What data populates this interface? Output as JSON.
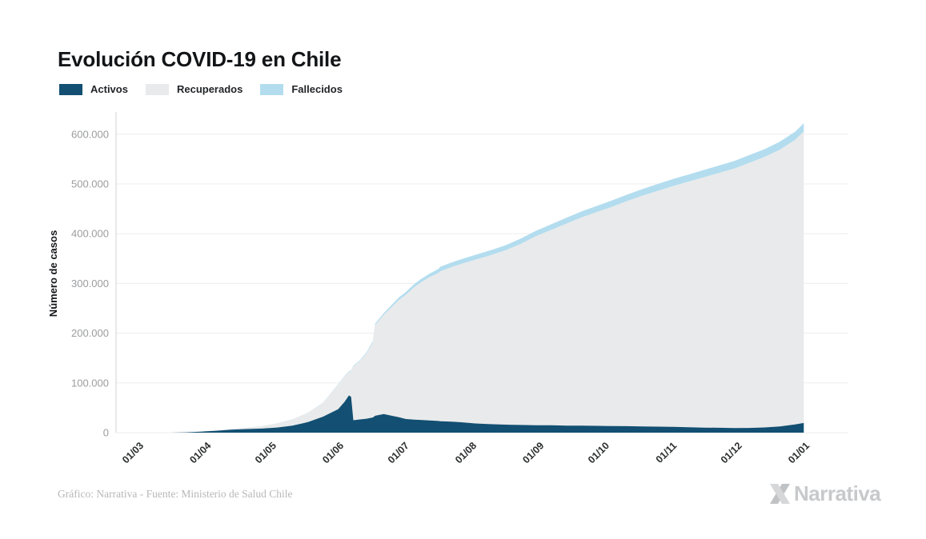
{
  "title": "Evolución COVID-19 en Chile",
  "legend": {
    "items": [
      {
        "label": "Activos",
        "color": "#124f72"
      },
      {
        "label": "Recuperados",
        "color": "#e9eaeb"
      },
      {
        "label": "Fallecidos",
        "color": "#b3ddef"
      }
    ]
  },
  "y_axis": {
    "title": "Número de casos",
    "ticks": [
      {
        "value": 0,
        "label": "0"
      },
      {
        "value": 100000,
        "label": "100.000"
      },
      {
        "value": 200000,
        "label": "200.000"
      },
      {
        "value": 300000,
        "label": "300.000"
      },
      {
        "value": 400000,
        "label": "400.000"
      },
      {
        "value": 500000,
        "label": "500.000"
      },
      {
        "value": 600000,
        "label": "600.000"
      }
    ]
  },
  "x_axis": {
    "ticks": [
      {
        "label": "01/03",
        "date": "2020-03-01"
      },
      {
        "label": "01/04",
        "date": "2020-04-01"
      },
      {
        "label": "01/05",
        "date": "2020-05-01"
      },
      {
        "label": "01/06",
        "date": "2020-06-01"
      },
      {
        "label": "01/07",
        "date": "2020-07-01"
      },
      {
        "label": "01/08",
        "date": "2020-08-01"
      },
      {
        "label": "01/09",
        "date": "2020-09-01"
      },
      {
        "label": "01/10",
        "date": "2020-10-01"
      },
      {
        "label": "01/11",
        "date": "2020-11-01"
      },
      {
        "label": "01/12",
        "date": "2020-12-01"
      },
      {
        "label": "01/01",
        "date": "2021-01-01"
      }
    ]
  },
  "footer": {
    "credit": "Gráfico: Narrativa - Fuente: Ministerio de Salud Chile",
    "brand": "Narrativa"
  },
  "chart_data": {
    "type": "area",
    "stacked": true,
    "title": "Evolución COVID-19 en Chile",
    "xlabel": "",
    "ylabel": "Número de casos",
    "ylim": [
      0,
      645000
    ],
    "grid": true,
    "legend_position": "top-left",
    "colors": {
      "grid": "#ededee",
      "axis": "#d2d4d6",
      "y_tick_text": "#9b9c9e",
      "x_tick_text": "#2b2d2e",
      "activos": "#124f72",
      "recuperados": "#e9eaeb",
      "fallecidos": "#b3ddef"
    },
    "dates": [
      "2020-03-01",
      "2020-03-08",
      "2020-03-15",
      "2020-03-22",
      "2020-03-29",
      "2020-04-05",
      "2020-04-12",
      "2020-04-19",
      "2020-04-26",
      "2020-05-03",
      "2020-05-10",
      "2020-05-17",
      "2020-05-24",
      "2020-05-31",
      "2020-06-03",
      "2020-06-05",
      "2020-06-06",
      "2020-06-07",
      "2020-06-10",
      "2020-06-13",
      "2020-06-16",
      "2020-06-17",
      "2020-06-21",
      "2020-06-24",
      "2020-06-28",
      "2020-07-01",
      "2020-07-05",
      "2020-07-08",
      "2020-07-12",
      "2020-07-16",
      "2020-07-17",
      "2020-07-22",
      "2020-07-26",
      "2020-08-02",
      "2020-08-09",
      "2020-08-16",
      "2020-08-23",
      "2020-08-30",
      "2020-09-06",
      "2020-09-13",
      "2020-09-20",
      "2020-09-27",
      "2020-10-04",
      "2020-10-11",
      "2020-10-18",
      "2020-10-25",
      "2020-11-01",
      "2020-11-08",
      "2020-11-15",
      "2020-11-22",
      "2020-11-29",
      "2020-12-06",
      "2020-12-13",
      "2020-12-20",
      "2020-12-27",
      "2020-12-31"
    ],
    "series": [
      {
        "name": "Activos",
        "color": "#124f72",
        "values": [
          0,
          10,
          75,
          620,
          2050,
          3800,
          5900,
          7300,
          8200,
          10300,
          14200,
          21100,
          32000,
          47000,
          62000,
          75000,
          72000,
          25000,
          26500,
          28000,
          30500,
          34000,
          37500,
          34500,
          31000,
          27500,
          26000,
          25500,
          24500,
          23500,
          23000,
          22000,
          21000,
          18500,
          17000,
          16000,
          15500,
          15000,
          14800,
          14200,
          14000,
          13600,
          13200,
          13000,
          12600,
          12000,
          11500,
          10800,
          10200,
          9800,
          9300,
          9500,
          10500,
          12500,
          16500,
          19500
        ]
      },
      {
        "name": "Recuperados",
        "color": "#e9eaeb",
        "values": [
          0,
          0,
          0,
          10,
          160,
          500,
          1450,
          2850,
          4900,
          8100,
          12100,
          18100,
          27000,
          49000,
          51000,
          47000,
          52000,
          108000,
          117000,
          131000,
          151500,
          182000,
          199000,
          215000,
          236000,
          249000,
          266500,
          276500,
          288000,
          297000,
          301500,
          310500,
          317500,
          329000,
          339500,
          350500,
          364000,
          380000,
          392800,
          406100,
          418900,
          430000,
          441000,
          452900,
          464000,
          474200,
          484300,
          493700,
          503000,
          512200,
          521400,
          532900,
          543600,
          556300,
          572000,
          585700
        ]
      },
      {
        "name": "Fallecidos",
        "color": "#b3ddef",
        "values": [
          0,
          0,
          0,
          1,
          8,
          30,
          85,
          130,
          190,
          270,
          350,
          480,
          760,
          1050,
          1200,
          1350,
          1400,
          1450,
          1700,
          2050,
          2550,
          3100,
          3700,
          4500,
          5100,
          5650,
          6200,
          6600,
          7000,
          8350,
          9100,
          9250,
          9400,
          9800,
          10100,
          10400,
          10700,
          11000,
          11400,
          11700,
          12100,
          12400,
          12800,
          13100,
          13400,
          13800,
          14200,
          14500,
          14800,
          15000,
          15300,
          15600,
          15900,
          16200,
          16500,
          16800
        ]
      }
    ]
  }
}
